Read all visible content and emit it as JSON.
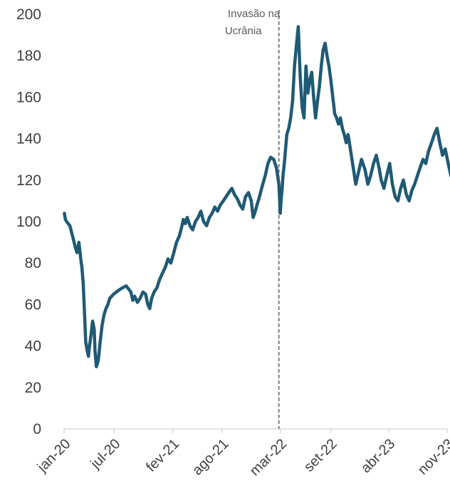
{
  "chart_data": {
    "type": "line",
    "title": "",
    "xlabel": "",
    "ylabel": "",
    "ylim": [
      0,
      200
    ],
    "yticks": [
      0,
      20,
      40,
      60,
      80,
      100,
      120,
      140,
      160,
      180,
      200
    ],
    "xticks": [
      "jan-20",
      "jul-20",
      "fev-21",
      "ago-21",
      "mar-22",
      "set-22",
      "abr-23",
      "nov-23"
    ],
    "grid": false,
    "legend": "none",
    "line_color": "#1f5a75",
    "annotation": {
      "text": [
        "Invasão na",
        "Ucrânia"
      ],
      "x": "2022-02-24",
      "line_color": "#7f7f7f"
    },
    "series": [
      {
        "x": [
          "2020-01-02",
          "2020-01-06",
          "2020-01-10",
          "2020-01-16",
          "2020-01-22",
          "2020-01-28",
          "2020-02-03",
          "2020-02-10",
          "2020-02-17",
          "2020-02-24",
          "2020-03-02",
          "2020-03-06",
          "2020-03-11",
          "2020-03-16",
          "2020-03-20",
          "2020-03-25",
          "2020-03-30",
          "2020-04-03",
          "2020-04-08",
          "2020-04-14",
          "2020-04-20",
          "2020-04-23",
          "2020-04-28",
          "2020-05-05",
          "2020-05-12",
          "2020-05-19",
          "2020-05-26",
          "2020-06-02",
          "2020-06-09",
          "2020-06-16",
          "2020-06-23",
          "2020-06-30",
          "2020-07-10",
          "2020-07-20",
          "2020-08-01",
          "2020-08-15",
          "2020-09-01",
          "2020-09-08",
          "2020-09-15",
          "2020-09-25",
          "2020-10-05",
          "2020-10-15",
          "2020-10-25",
          "2020-11-02",
          "2020-11-09",
          "2020-11-16",
          "2020-11-25",
          "2020-12-05",
          "2020-12-15",
          "2020-12-25",
          "2021-01-05",
          "2021-01-15",
          "2021-01-25",
          "2021-02-05",
          "2021-02-15",
          "2021-02-25",
          "2021-03-05",
          "2021-03-12",
          "2021-03-19",
          "2021-03-26",
          "2021-04-05",
          "2021-04-15",
          "2021-04-25",
          "2021-05-05",
          "2021-05-15",
          "2021-05-25",
          "2021-06-05",
          "2021-06-15",
          "2021-06-25",
          "2021-07-05",
          "2021-07-15",
          "2021-07-25",
          "2021-08-05",
          "2021-08-15",
          "2021-08-25",
          "2021-09-05",
          "2021-09-15",
          "2021-09-25",
          "2021-10-05",
          "2021-10-15",
          "2021-10-25",
          "2021-11-05",
          "2021-11-15",
          "2021-11-22",
          "2021-11-30",
          "2021-12-06",
          "2021-12-15",
          "2021-12-25",
          "2022-01-05",
          "2022-01-15",
          "2022-01-25",
          "2022-02-05",
          "2022-02-15",
          "2022-02-24",
          "2022-03-01",
          "2022-03-04",
          "2022-03-08",
          "2022-03-11",
          "2022-03-16",
          "2022-03-21",
          "2022-03-25",
          "2022-04-01",
          "2022-04-08",
          "2022-04-15",
          "2022-04-22",
          "2022-04-29",
          "2022-05-06",
          "2022-05-13",
          "2022-05-20",
          "2022-05-27",
          "2022-06-03",
          "2022-06-10",
          "2022-06-17",
          "2022-06-24",
          "2022-07-01",
          "2022-07-08",
          "2022-07-15",
          "2022-07-22",
          "2022-07-29",
          "2022-08-05",
          "2022-08-12",
          "2022-08-19",
          "2022-08-26",
          "2022-09-02",
          "2022-09-09",
          "2022-09-16",
          "2022-09-23",
          "2022-09-30",
          "2022-10-07",
          "2022-10-14",
          "2022-10-21",
          "2022-10-28",
          "2022-11-04",
          "2022-11-11",
          "2022-11-18",
          "2022-11-25",
          "2022-12-02",
          "2022-12-09",
          "2022-12-16",
          "2022-12-23",
          "2023-01-05",
          "2023-01-15",
          "2023-01-25",
          "2023-02-05",
          "2023-02-15",
          "2023-02-25",
          "2023-03-05",
          "2023-03-15",
          "2023-03-25",
          "2023-04-05",
          "2023-04-15",
          "2023-04-25",
          "2023-05-05",
          "2023-05-15",
          "2023-05-25",
          "2023-06-05",
          "2023-06-15",
          "2023-06-25",
          "2023-07-05",
          "2023-07-15",
          "2023-07-25",
          "2023-08-05",
          "2023-08-15",
          "2023-08-25",
          "2023-09-05",
          "2023-09-15",
          "2023-09-25",
          "2023-10-05",
          "2023-10-15",
          "2023-10-25",
          "2023-11-05",
          "2023-11-15",
          "2023-11-25"
        ],
        "values": [
          104,
          101,
          100,
          99,
          98,
          95,
          92,
          88,
          85,
          90,
          82,
          78,
          70,
          55,
          42,
          38,
          35,
          40,
          45,
          52,
          48,
          38,
          30,
          33,
          42,
          50,
          55,
          58,
          60,
          63,
          64,
          65,
          66,
          67,
          68,
          69,
          66,
          62,
          64,
          61,
          63,
          66,
          65,
          60,
          58,
          63,
          66,
          68,
          72,
          75,
          78,
          82,
          80,
          85,
          90,
          93,
          97,
          101,
          99,
          102,
          98,
          96,
          100,
          102,
          105,
          100,
          98,
          102,
          104,
          107,
          105,
          108,
          110,
          112,
          114,
          116,
          113,
          111,
          108,
          106,
          112,
          114,
          110,
          102,
          105,
          108,
          112,
          117,
          122,
          128,
          131,
          130,
          126,
          118,
          104,
          110,
          116,
          122,
          128,
          136,
          142,
          145,
          150,
          158,
          175,
          185,
          194,
          170,
          155,
          150,
          175,
          162,
          168,
          172,
          160,
          150,
          158,
          165,
          175,
          183,
          186,
          180,
          175,
          168,
          160,
          152,
          150,
          147,
          150,
          145,
          142,
          138,
          142,
          136,
          130,
          124,
          118,
          122,
          126,
          130,
          125,
          118,
          122,
          128,
          132,
          126,
          120,
          116,
          122,
          128,
          118,
          112,
          110,
          116,
          120,
          113,
          110,
          115,
          118,
          122,
          126,
          130,
          128,
          134,
          138,
          142,
          145,
          138,
          132,
          135,
          128,
          122,
          118
        ]
      }
    ]
  }
}
